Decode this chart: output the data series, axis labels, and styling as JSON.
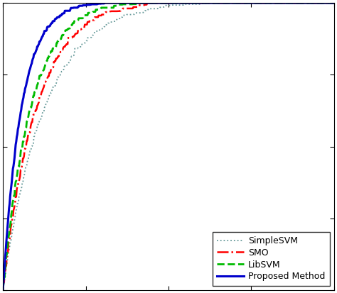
{
  "title": "",
  "xlim": [
    0,
    1
  ],
  "ylim": [
    0,
    1
  ],
  "proposed_method_color": "#0000cc",
  "smo_color": "#ff0000",
  "libsvm_color": "#00bb00",
  "simplesvm_color": "#669999",
  "legend_labels": [
    "SMO",
    "LibSVM",
    "Proposed Method",
    "SimpleSVM"
  ],
  "background_color": "#ffffff",
  "tick_label_size": 8,
  "legend_fontsize": 9,
  "proposed_exp": 18,
  "libsvm_exp": 12,
  "smo_exp": 10,
  "simplesvm_exp": 8
}
